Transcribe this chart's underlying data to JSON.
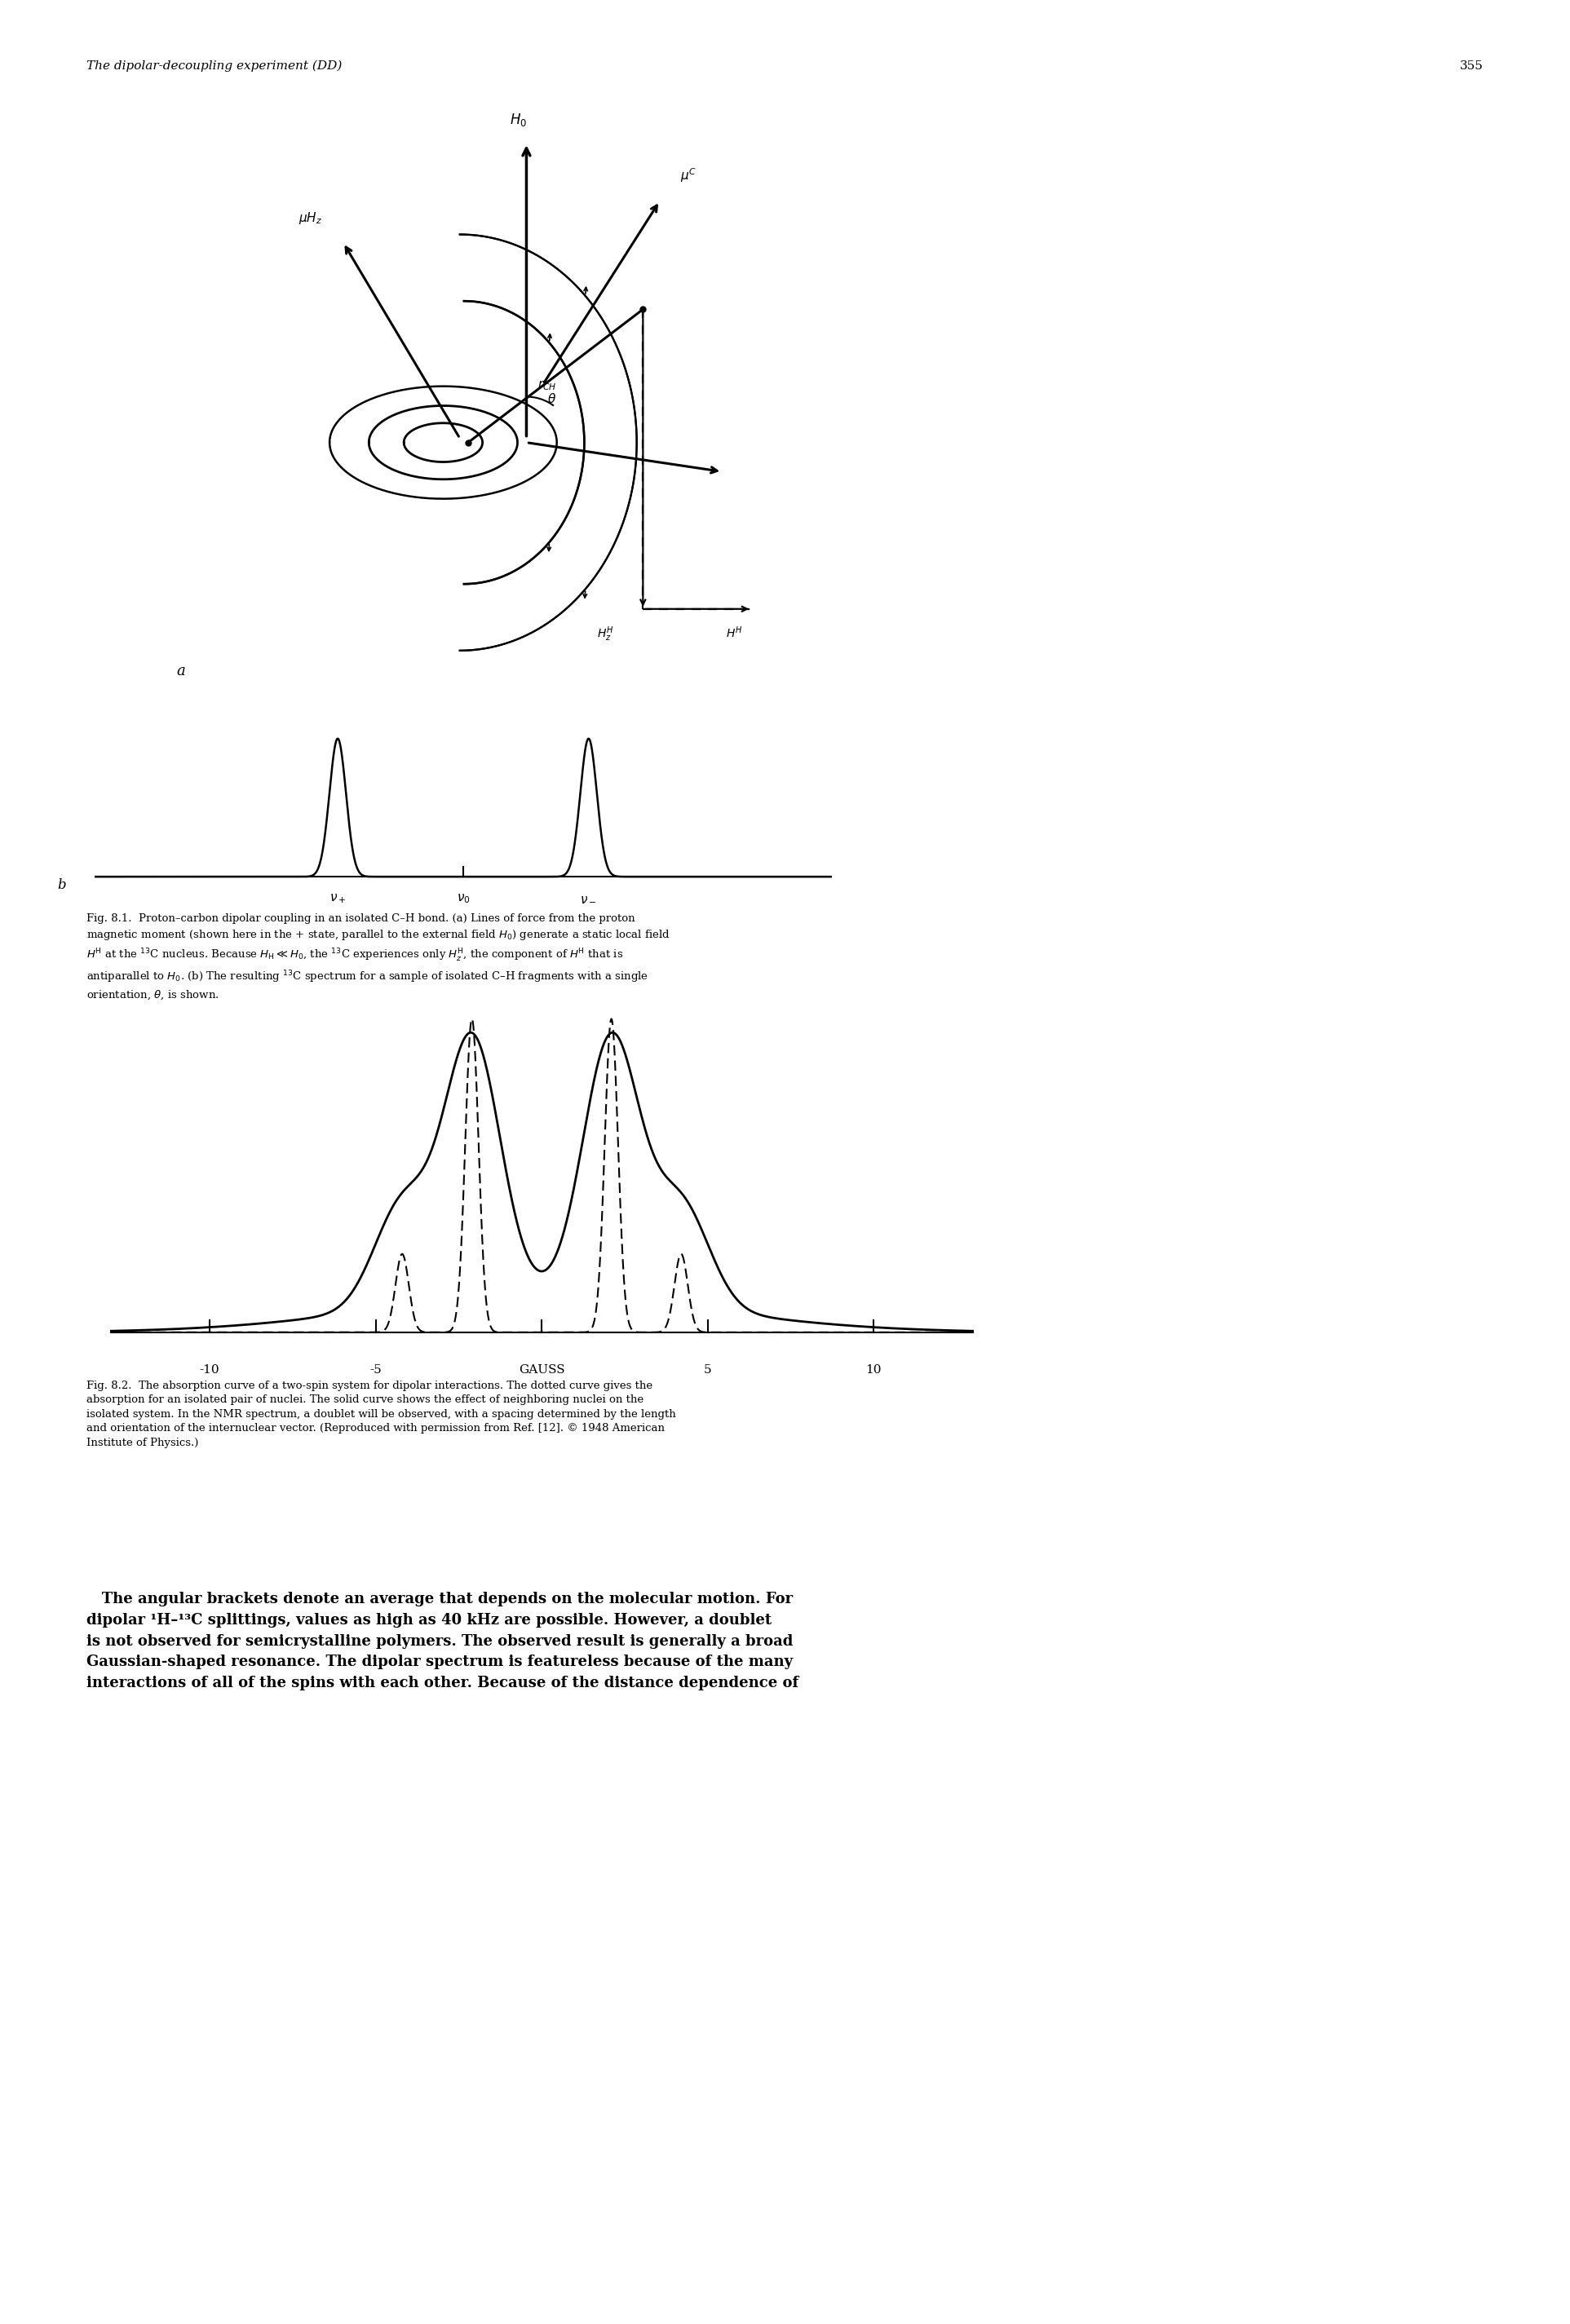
{
  "page_title": "The dipolar-decoupling experiment (DD)",
  "page_number": "355",
  "header_fontsize": 11,
  "fig81_caption_line1": "Fig. 8.1. Proton–carbon dipolar coupling in an isolated C–H bond. (a) Lines of force from the proton",
  "fig81_caption_line2": "magnetic moment (shown here in the + state, parallel to the external field ",
  "fig81_caption_line2b": ") generate a static local field",
  "fig81_caption_line3": " at the ",
  "fig81_caption_line3b": "C nucleus. Because ",
  "fig81_caption_line3c": " ≪ ",
  "fig81_caption_line3d": ", the ",
  "fig81_caption_line3e": "C experiences only ",
  "fig81_caption_line3f": ", the component of ",
  "fig81_caption_line3g": " that is",
  "fig81_caption_line4": "antiparallel to ",
  "fig81_caption_line4b": ". (b) The resulting ",
  "fig81_caption_line4c": "C spectrum for a sample of isolated C–H fragments with a single",
  "fig81_caption_line5": "orientation, θ, is shown.",
  "fig82_caption": "Fig. 8.2. The absorption curve of a two-spin system for dipolar interactions. The dotted curve gives the\nabsorption for an isolated pair of nuclei. The solid curve shows the effect of neighboring nuclei on the\nisolated system. In the NMR spectrum, a doublet will be observed, with a spacing determined by the length\nand orientation of the internuclear vector. (Reproduced with permission from Ref. [12]. © 1948 American\nInstitute of Physics.)",
  "body_text_line1": "   The angular brackets denote an average that depends on the molecular motion. For",
  "body_text_line2": "dipolar ¹H–¹³C splittings, values as high as 40 kHz are possible. However, a doublet",
  "body_text_line3": "is not observed for semicrystalline polymers. The observed result is generally a broad",
  "body_text_line4": "Gaussian-shaped resonance. The dipolar spectrum is featureless because of the many",
  "body_text_line5": "interactions of all of the spins with each other. Because of the distance dependence of",
  "bg_color": "#ffffff",
  "text_color": "#000000",
  "caption_fontsize": 9.5,
  "body_fontsize": 13
}
